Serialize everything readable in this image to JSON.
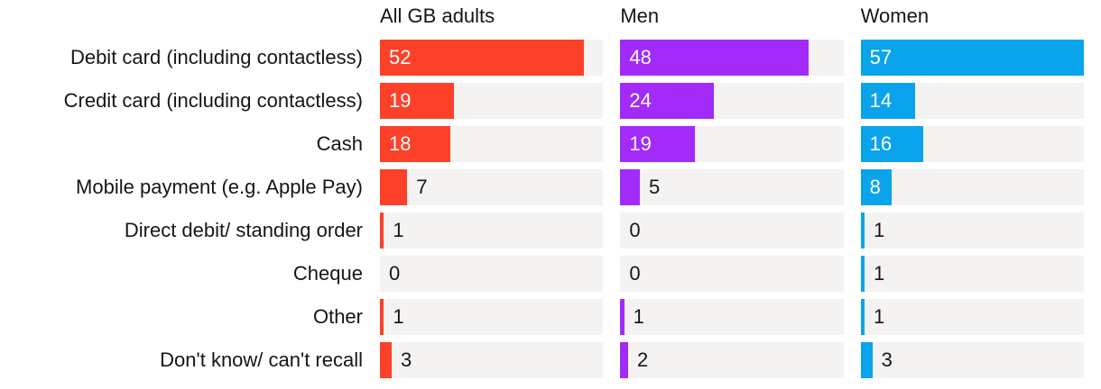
{
  "chart_data": {
    "type": "bar",
    "orientation": "horizontal",
    "categories": [
      "Debit card (including contactless)",
      "Credit card (including contactless)",
      "Cash",
      "Mobile payment (e.g. Apple Pay)",
      "Direct debit/ standing order",
      "Cheque",
      "Other",
      "Don't know/ can't recall"
    ],
    "series": [
      {
        "name": "All GB adults",
        "color": "#fd4128",
        "values": [
          52,
          19,
          18,
          7,
          1,
          0,
          1,
          3
        ]
      },
      {
        "name": "Men",
        "color": "#a22bfa",
        "values": [
          48,
          24,
          19,
          5,
          0,
          0,
          1,
          2
        ]
      },
      {
        "name": "Women",
        "color": "#0aa4ec",
        "values": [
          57,
          14,
          16,
          8,
          1,
          1,
          1,
          3
        ]
      }
    ],
    "xlim": [
      0,
      57
    ],
    "value_labels": "shown",
    "inside_label_min": 8,
    "track_color": "#f4f3f1",
    "text_color": "#161616",
    "grid": "off",
    "legend_position": "column-headers"
  }
}
